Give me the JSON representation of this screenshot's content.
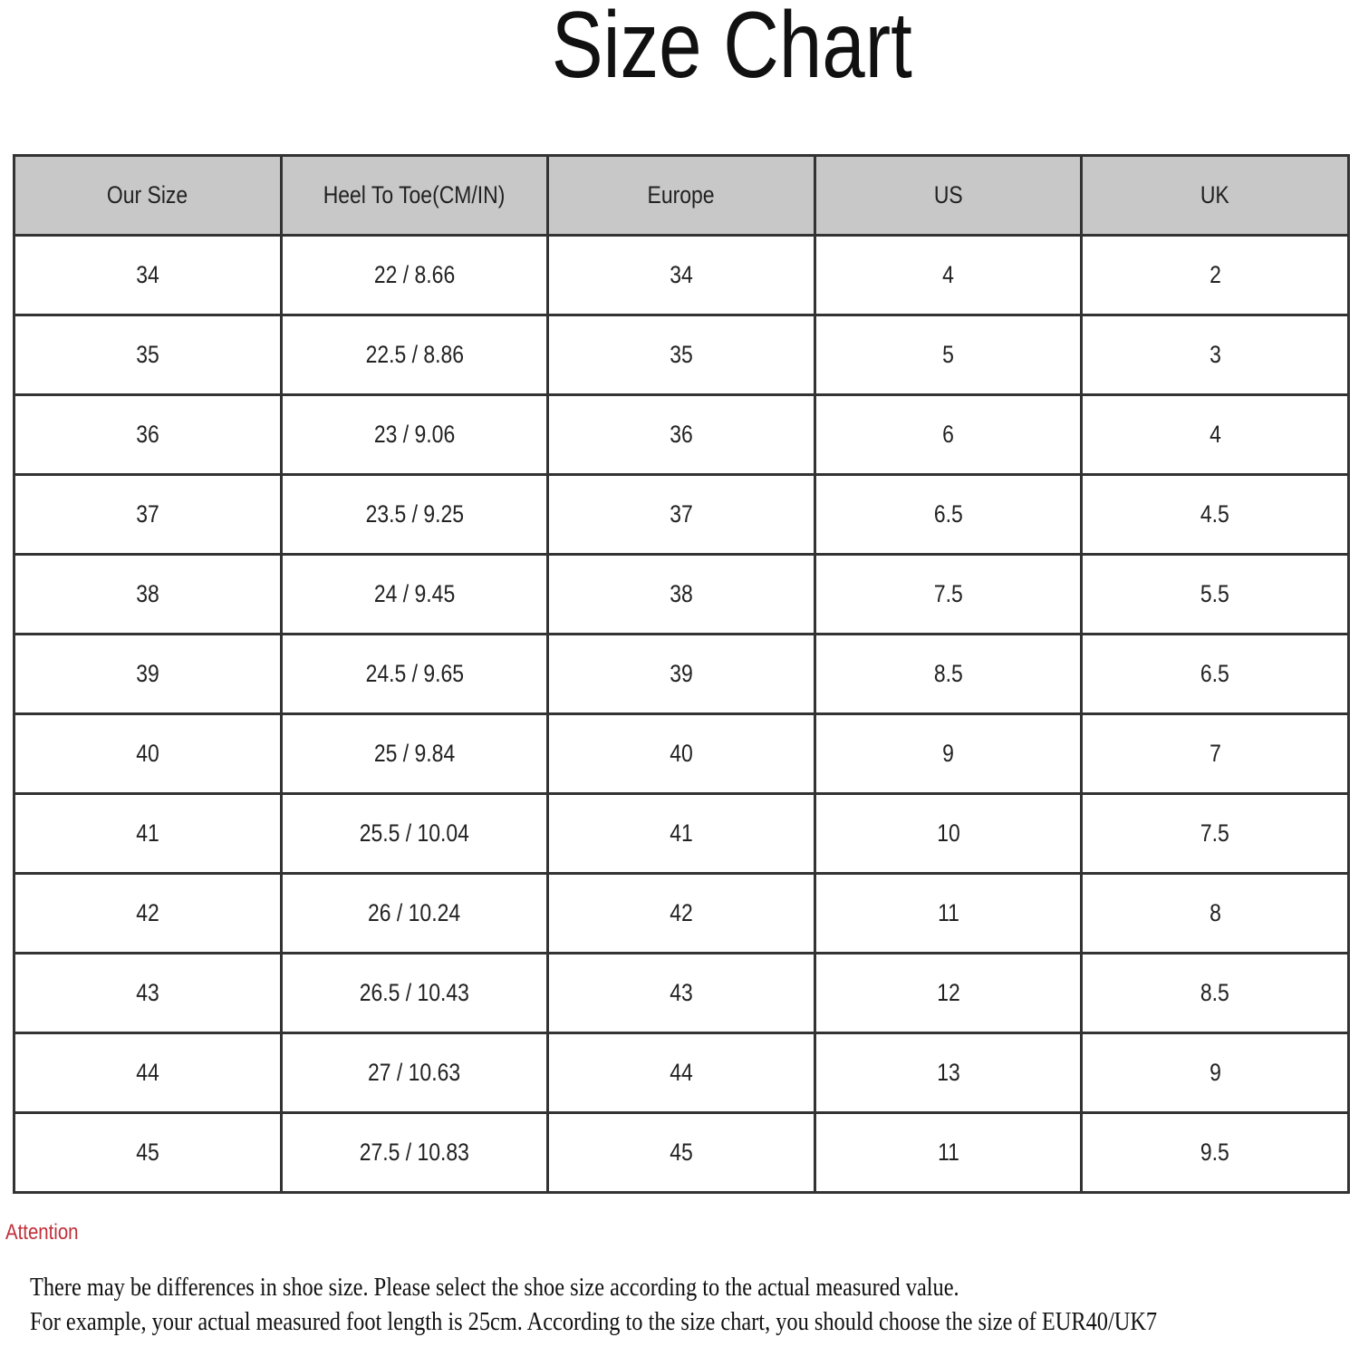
{
  "title": "Size Chart",
  "table": {
    "headers": [
      "Our Size",
      "Heel To Toe(CM/IN)",
      "Europe",
      "US",
      "UK"
    ],
    "rows": [
      [
        "34",
        "22 / 8.66",
        "34",
        "4",
        "2"
      ],
      [
        "35",
        "22.5 / 8.86",
        "35",
        "5",
        "3"
      ],
      [
        "36",
        "23 / 9.06",
        "36",
        "6",
        "4"
      ],
      [
        "37",
        "23.5 / 9.25",
        "37",
        "6.5",
        "4.5"
      ],
      [
        "38",
        "24 / 9.45",
        "38",
        "7.5",
        "5.5"
      ],
      [
        "39",
        "24.5 / 9.65",
        "39",
        "8.5",
        "6.5"
      ],
      [
        "40",
        "25 / 9.84",
        "40",
        "9",
        "7"
      ],
      [
        "41",
        "25.5 / 10.04",
        "41",
        "10",
        "7.5"
      ],
      [
        "42",
        "26 / 10.24",
        "42",
        "11",
        "8"
      ],
      [
        "43",
        "26.5 / 10.43",
        "43",
        "12",
        "8.5"
      ],
      [
        "44",
        "27 / 10.63",
        "44",
        "13",
        "9"
      ],
      [
        "45",
        "27.5 / 10.83",
        "45",
        "11",
        "9.5"
      ]
    ]
  },
  "attention": {
    "label": "Attention",
    "color": "#c0303a",
    "lines": [
      "There may be differences in shoe size. Please select the shoe size according to the actual measured value.",
      "For example, your actual measured foot length is 25cm. According to the size chart, you should choose the size of EUR40/UK7"
    ]
  }
}
